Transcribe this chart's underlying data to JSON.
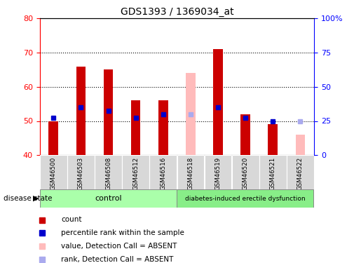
{
  "title": "GDS1393 / 1369034_at",
  "samples": [
    "GSM46500",
    "GSM46503",
    "GSM46508",
    "GSM46512",
    "GSM46516",
    "GSM46518",
    "GSM46519",
    "GSM46520",
    "GSM46521",
    "GSM46522"
  ],
  "groups": [
    "control",
    "control",
    "control",
    "control",
    "control",
    "disease",
    "disease",
    "disease",
    "disease",
    "disease"
  ],
  "count_values": [
    50,
    66,
    65,
    56,
    56,
    null,
    71,
    52,
    49,
    null
  ],
  "count_absent": [
    null,
    null,
    null,
    null,
    null,
    64,
    null,
    null,
    null,
    46
  ],
  "rank_values": [
    51,
    54,
    53,
    51,
    52,
    null,
    54,
    51,
    50,
    null
  ],
  "rank_absent": [
    null,
    null,
    null,
    null,
    null,
    52,
    null,
    null,
    null,
    50
  ],
  "ylim_left": [
    40,
    80
  ],
  "ylim_right": [
    0,
    100
  ],
  "yticks_left": [
    40,
    50,
    60,
    70,
    80
  ],
  "yticks_right": [
    0,
    25,
    50,
    75,
    100
  ],
  "yticklabels_right": [
    "0",
    "25",
    "50",
    "75",
    "100%"
  ],
  "count_color": "#cc0000",
  "count_absent_color": "#ffbbbb",
  "rank_color": "#0000cc",
  "rank_absent_color": "#aaaaee",
  "control_color": "#aaffaa",
  "disease_color": "#88ee88",
  "control_label": "control",
  "disease_label": "diabetes-induced erectile dysfunction",
  "disease_state_label": "disease state",
  "legend_items": [
    "count",
    "percentile rank within the sample",
    "value, Detection Call = ABSENT",
    "rank, Detection Call = ABSENT"
  ],
  "bar_width": 0.35
}
